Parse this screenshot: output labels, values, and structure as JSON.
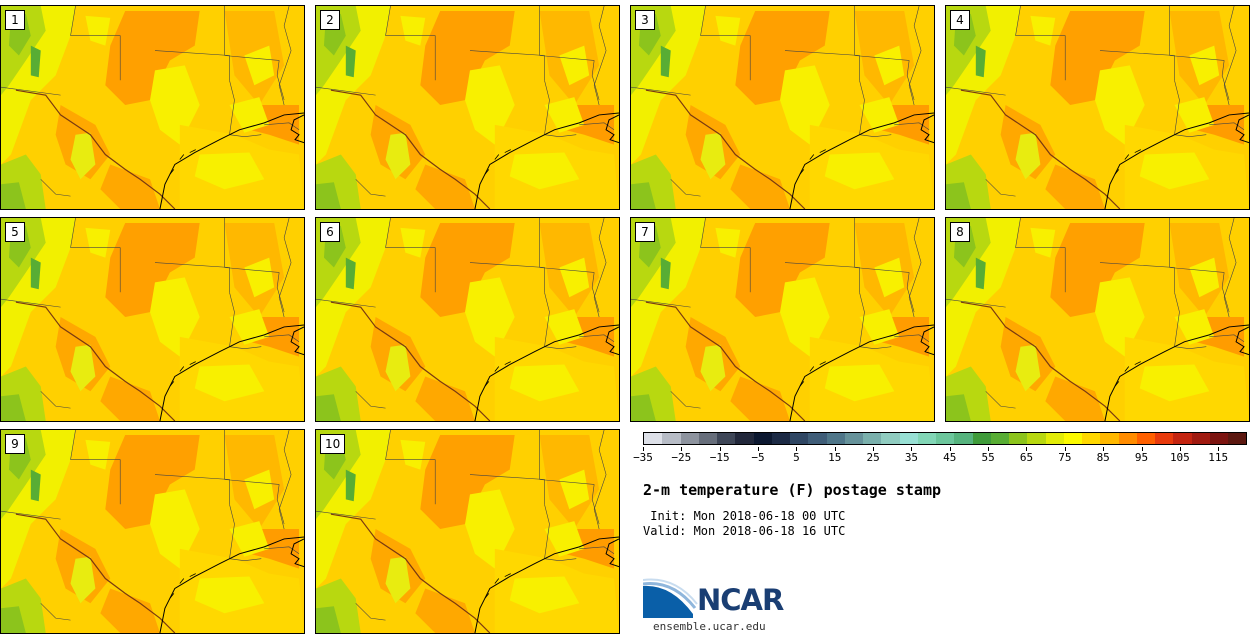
{
  "panels": [
    {
      "label": "1"
    },
    {
      "label": "2"
    },
    {
      "label": "3"
    },
    {
      "label": "4"
    },
    {
      "label": "5"
    },
    {
      "label": "6"
    },
    {
      "label": "7"
    },
    {
      "label": "8"
    },
    {
      "label": "9"
    },
    {
      "label": "10"
    }
  ],
  "colorbar": {
    "colors": [
      "#dde0e8",
      "#b7bcc6",
      "#8d939e",
      "#676e7b",
      "#3e4657",
      "#22283b",
      "#0c1830",
      "#1c2a45",
      "#2f4663",
      "#3f5d78",
      "#4f7689",
      "#66929a",
      "#7ab0ac",
      "#90ccc0",
      "#98e0d4",
      "#82d6b6",
      "#6cc69c",
      "#56b37e",
      "#3f9b3a",
      "#58ad34",
      "#8cc41c",
      "#b8d810",
      "#e2ec08",
      "#fcfa00",
      "#ffd800",
      "#ffb800",
      "#ff8c00",
      "#ff6000",
      "#e83a0c",
      "#c42410",
      "#a01a10",
      "#7c1410",
      "#5c1810"
    ],
    "tick_labels": [
      "−35",
      "−25",
      "−15",
      "−5",
      "5",
      "15",
      "25",
      "35",
      "45",
      "55",
      "65",
      "75",
      "85",
      "95",
      "105",
      "115"
    ]
  },
  "title": "2-m temperature (F) postage stamp",
  "init": " Init: Mon 2018-06-18 00 UTC",
  "valid": "Valid: Mon 2018-06-18 16 UTC",
  "logo": {
    "text": "NCAR",
    "site": "ensemble.ucar.edu",
    "blue": "#0a5fa8"
  }
}
